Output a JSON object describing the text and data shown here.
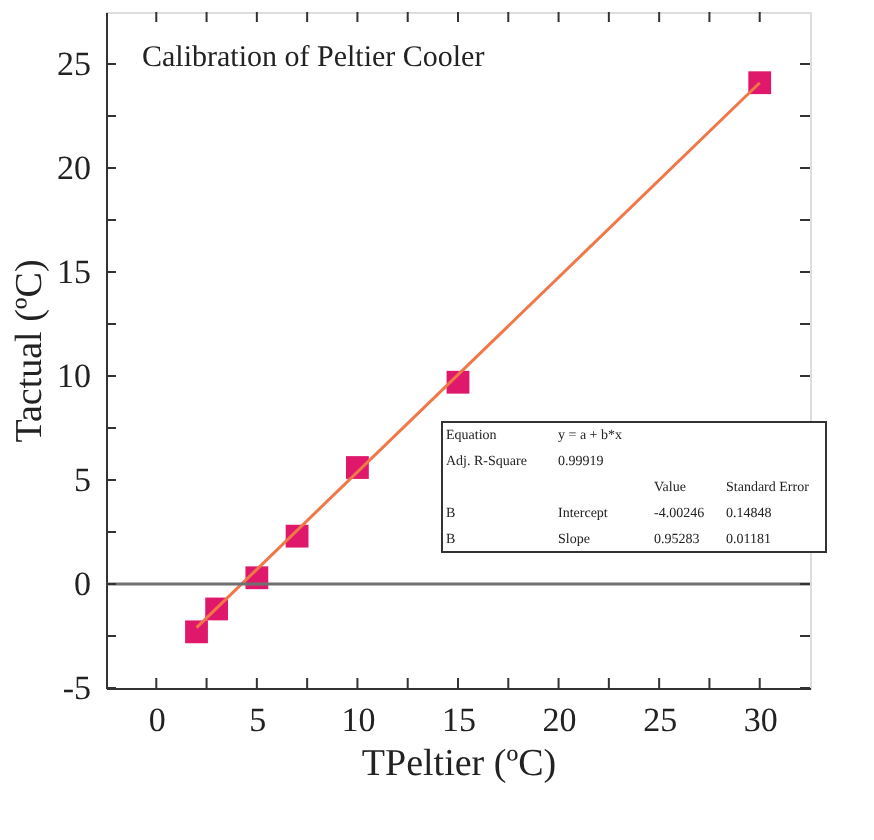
{
  "chart_data": {
    "type": "scatter",
    "title": "Calibration of Peltier Cooler",
    "xlabel": "TPeltier (ºC)",
    "ylabel": "Tactual (ºC)",
    "x": [
      2,
      3,
      5,
      7,
      10,
      15,
      30
    ],
    "series": [
      {
        "color": "#e0186c",
        "marker": "square",
        "values": [
          -2.3,
          -1.2,
          0.3,
          2.3,
          5.6,
          9.7,
          24.1
        ]
      },
      {
        "type": "line",
        "color": "#f07848",
        "marker": "none",
        "line_style": "solid",
        "x": [
          2,
          30
        ],
        "values": [
          -2.1,
          24.1
        ]
      }
    ],
    "xlim": [
      -2.5,
      32.5
    ],
    "ylim": [
      -5,
      27.5
    ],
    "xticks": [
      0,
      {
        "value": 2.5,
        "label": null
      },
      5,
      {
        "value": 7.5,
        "label": null
      },
      10,
      {
        "value": 12.5,
        "label": null
      },
      15,
      {
        "value": 17.5,
        "label": null
      },
      20,
      {
        "value": 22.5,
        "label": null
      },
      25,
      {
        "value": 27.5,
        "label": null
      },
      30
    ],
    "yticks": [
      -5,
      {
        "value": -2.5,
        "label": null
      },
      0,
      {
        "value": 2.5,
        "label": null
      },
      5,
      {
        "value": 7.5,
        "label": null
      },
      10,
      {
        "value": 12.5,
        "label": null
      },
      15,
      {
        "value": 17.5,
        "label": null
      },
      20,
      {
        "value": 22.5,
        "label": null
      },
      25
    ],
    "ref_lines": [
      {
        "axis": "y",
        "value": 0,
        "color": "#707070"
      }
    ],
    "grid": false,
    "annotations": [
      "Equation",
      "y = a + b*x",
      "Adj. R-Square",
      "0.99919",
      "Value",
      "Standard Error",
      "B",
      "Intercept",
      "-4.00246",
      "0.14848",
      "B",
      "Slope",
      "0.95283",
      "0.01181"
    ]
  }
}
